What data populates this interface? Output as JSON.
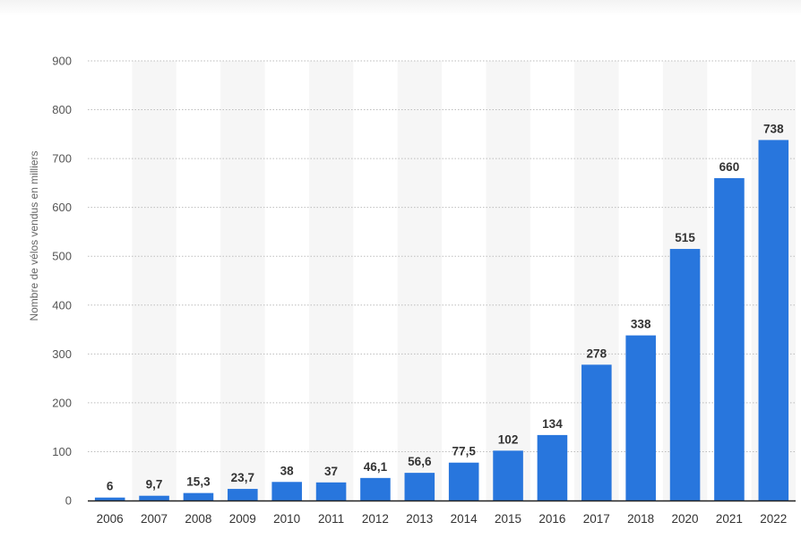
{
  "chart_data": {
    "type": "bar",
    "categories": [
      "2006",
      "2007",
      "2008",
      "2009",
      "2010",
      "2011",
      "2012",
      "2013",
      "2014",
      "2015",
      "2016",
      "2017",
      "2018",
      "2020",
      "2021",
      "2022"
    ],
    "values": [
      6,
      9.7,
      15.3,
      23.7,
      38,
      37,
      46.1,
      56.6,
      77.5,
      102,
      134,
      278,
      338,
      515,
      660,
      738
    ],
    "value_labels": [
      "6",
      "9,7",
      "15,3",
      "23,7",
      "38",
      "37",
      "46,1",
      "56,6",
      "77,5",
      "102",
      "134",
      "278",
      "338",
      "515",
      "660",
      "738"
    ],
    "ylabel": "Nombre de vélos vendus en milliers",
    "y_ticks": [
      "0",
      "100",
      "200",
      "300",
      "400",
      "500",
      "600",
      "700",
      "800",
      "900"
    ],
    "ylim": [
      0,
      900
    ],
    "grid": true,
    "bar_color": "#2876dd",
    "band_color": "#f6f6f6"
  }
}
